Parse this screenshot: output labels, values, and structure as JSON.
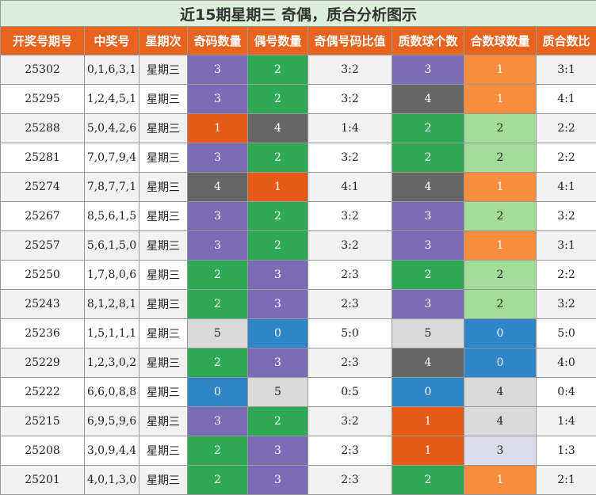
{
  "title": "近15期星期三 奇偶，质合分析图示",
  "headers": [
    "开奖号期号",
    "中奖号",
    "星期次",
    "奇码数量",
    "偶号数量",
    "奇偶号码比值",
    "质数球个数",
    "合数球数量",
    "质合数比"
  ],
  "colors": {
    "header_bg": "#e8631e",
    "title_bg": "#dcefdc",
    "purple": "#7b6db5",
    "green": "#2eaa57",
    "orange_dark": "#e85a17",
    "gray_dark": "#666666",
    "orange_light": "#f98d3e",
    "light_green": "#a3dc99",
    "light_gray": "#d9d9d9",
    "blue": "#2e86c8",
    "lavender": "#dcdcec"
  },
  "rows": [
    {
      "issue": "25302",
      "numbers": "0,1,6,3,1",
      "weekday": "星期三",
      "odd": "3",
      "even": "2",
      "oe_ratio": "3:2",
      "prime": "3",
      "composite": "1",
      "pc_ratio": "3:1"
    },
    {
      "issue": "25295",
      "numbers": "1,2,4,5,1",
      "weekday": "星期三",
      "odd": "3",
      "even": "2",
      "oe_ratio": "3:2",
      "prime": "4",
      "composite": "1",
      "pc_ratio": "4:1"
    },
    {
      "issue": "25288",
      "numbers": "5,0,4,2,6",
      "weekday": "星期三",
      "odd": "1",
      "even": "4",
      "oe_ratio": "1:4",
      "prime": "2",
      "composite": "2",
      "pc_ratio": "2:2"
    },
    {
      "issue": "25281",
      "numbers": "7,0,7,9,4",
      "weekday": "星期三",
      "odd": "3",
      "even": "2",
      "oe_ratio": "3:2",
      "prime": "2",
      "composite": "2",
      "pc_ratio": "2:2"
    },
    {
      "issue": "25274",
      "numbers": "7,8,7,7,1",
      "weekday": "星期三",
      "odd": "4",
      "even": "1",
      "oe_ratio": "4:1",
      "prime": "4",
      "composite": "1",
      "pc_ratio": "4:1"
    },
    {
      "issue": "25267",
      "numbers": "8,5,6,1,5",
      "weekday": "星期三",
      "odd": "3",
      "even": "2",
      "oe_ratio": "3:2",
      "prime": "3",
      "composite": "2",
      "pc_ratio": "3:2"
    },
    {
      "issue": "25257",
      "numbers": "5,6,1,5,0",
      "weekday": "星期三",
      "odd": "3",
      "even": "2",
      "oe_ratio": "3:2",
      "prime": "3",
      "composite": "1",
      "pc_ratio": "3:1"
    },
    {
      "issue": "25250",
      "numbers": "1,7,8,0,6",
      "weekday": "星期三",
      "odd": "2",
      "even": "3",
      "oe_ratio": "2:3",
      "prime": "2",
      "composite": "2",
      "pc_ratio": "2:2"
    },
    {
      "issue": "25243",
      "numbers": "8,1,2,8,1",
      "weekday": "星期三",
      "odd": "2",
      "even": "3",
      "oe_ratio": "2:3",
      "prime": "3",
      "composite": "2",
      "pc_ratio": "3:2"
    },
    {
      "issue": "25236",
      "numbers": "1,5,1,1,1",
      "weekday": "星期三",
      "odd": "5",
      "even": "0",
      "oe_ratio": "5:0",
      "prime": "5",
      "composite": "0",
      "pc_ratio": "5:0"
    },
    {
      "issue": "25229",
      "numbers": "1,2,3,0,2",
      "weekday": "星期三",
      "odd": "2",
      "even": "3",
      "oe_ratio": "2:3",
      "prime": "4",
      "composite": "0",
      "pc_ratio": "4:0"
    },
    {
      "issue": "25222",
      "numbers": "6,6,0,8,8",
      "weekday": "星期三",
      "odd": "0",
      "even": "5",
      "oe_ratio": "0:5",
      "prime": "0",
      "composite": "4",
      "pc_ratio": "0:4"
    },
    {
      "issue": "25215",
      "numbers": "6,9,5,9,6",
      "weekday": "星期三",
      "odd": "3",
      "even": "2",
      "oe_ratio": "3:2",
      "prime": "1",
      "composite": "4",
      "pc_ratio": "1:4"
    },
    {
      "issue": "25208",
      "numbers": "3,0,9,4,4",
      "weekday": "星期三",
      "odd": "2",
      "even": "3",
      "oe_ratio": "2:3",
      "prime": "1",
      "composite": "3",
      "pc_ratio": "1:3"
    },
    {
      "issue": "25201",
      "numbers": "4,0,1,3,0",
      "weekday": "星期三",
      "odd": "2",
      "even": "3",
      "oe_ratio": "2:3",
      "prime": "2",
      "composite": "1",
      "pc_ratio": "2:1"
    }
  ]
}
